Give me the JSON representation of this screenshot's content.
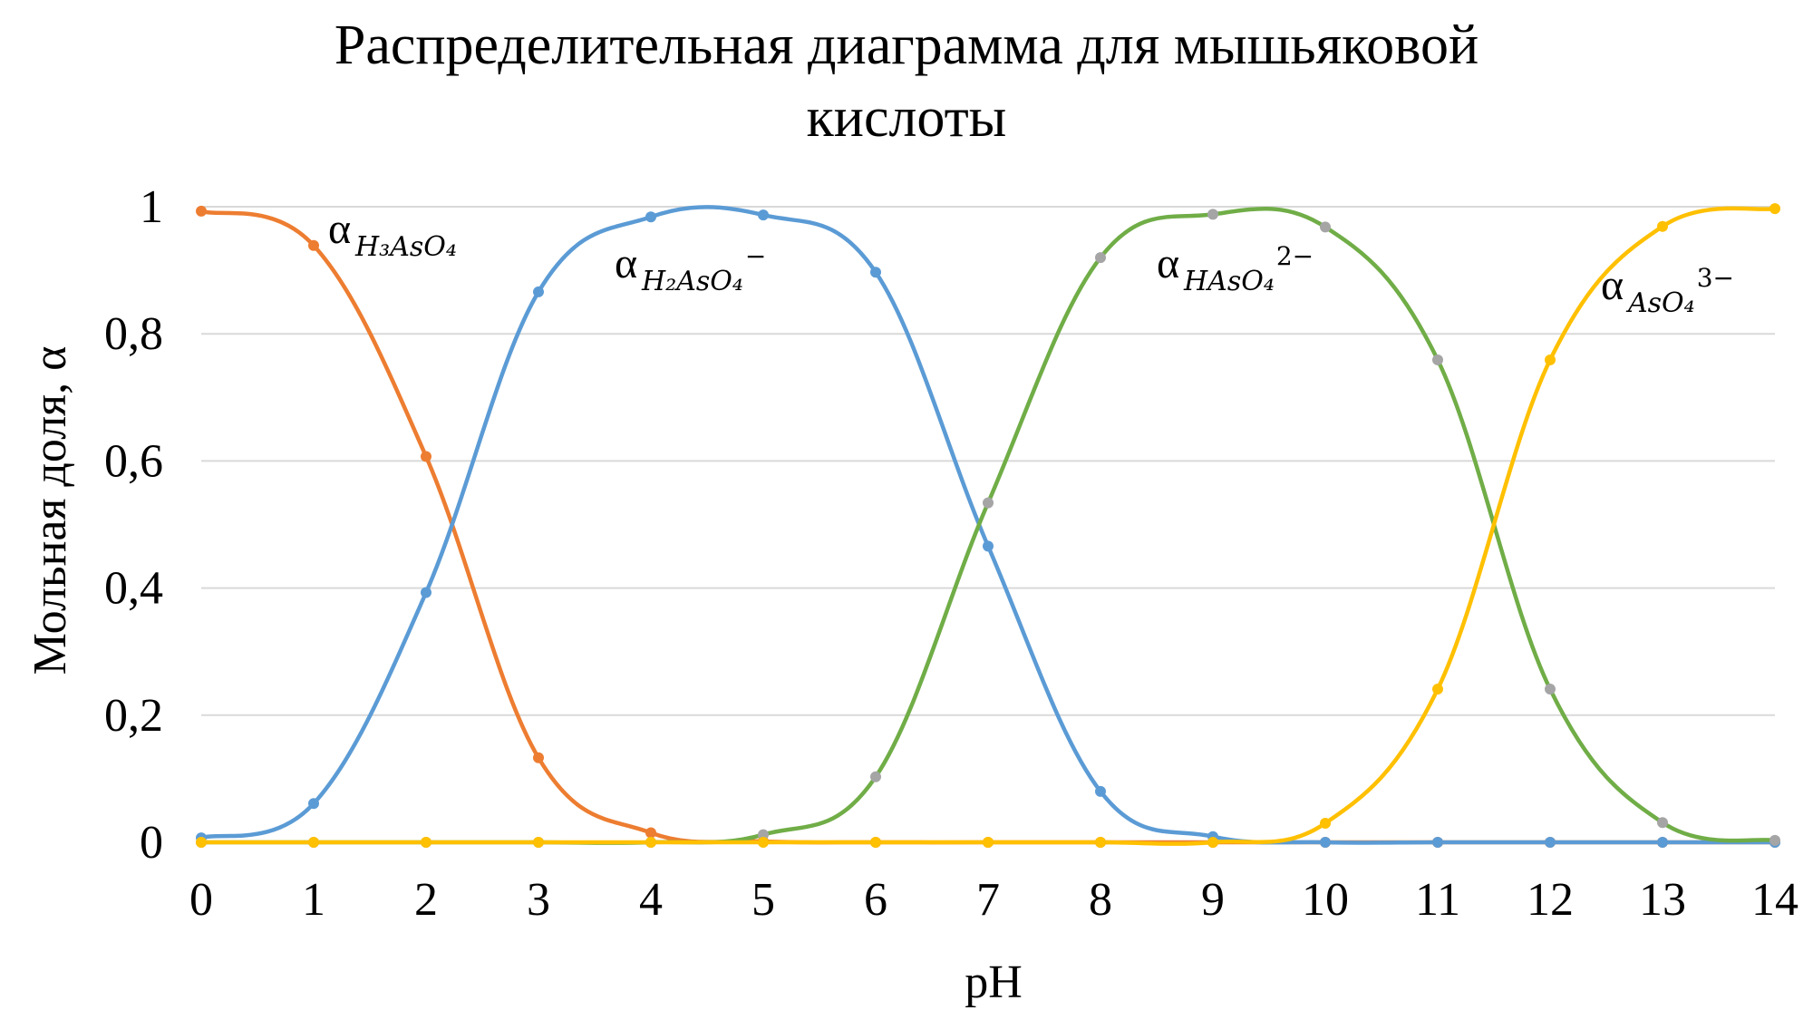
{
  "chart_data": {
    "type": "line",
    "title": [
      "Распределительная диаграмма для мышьяковой",
      "кислоты"
    ],
    "xlabel": "pH",
    "ylabel": "Мольная доля, α",
    "x": [
      0,
      1,
      2,
      3,
      4,
      5,
      6,
      7,
      8,
      9,
      10,
      11,
      12,
      13,
      14
    ],
    "x_tick_labels": [
      "0",
      "1",
      "2",
      "3",
      "4",
      "5",
      "6",
      "7",
      "8",
      "9",
      "10",
      "11",
      "12",
      "13",
      "14"
    ],
    "y_tick_labels": [
      "0",
      "0,2",
      "0,4",
      "0,6",
      "0,8",
      "1"
    ],
    "xlim": [
      0,
      14
    ],
    "ylim": [
      0,
      1
    ],
    "grid": "horizontal",
    "smooth": true,
    "series": [
      {
        "symbol": "α",
        "sub": "H₃AsO₄",
        "sup": "",
        "color": "#ED7D31",
        "marker_color": "#ED7D31",
        "values": [
          0.993,
          0.939,
          0.607,
          0.133,
          0.015,
          0.0015,
          0.0,
          0.0,
          0.0,
          0.0,
          0.0,
          0.0,
          0.0,
          0.0,
          0.0
        ]
      },
      {
        "symbol": "α",
        "sub": "H₂AsO₄",
        "sup": "−",
        "color": "#5B9BD5",
        "marker_color": "#5B9BD5",
        "values": [
          0.007,
          0.061,
          0.393,
          0.866,
          0.984,
          0.987,
          0.897,
          0.466,
          0.08,
          0.009,
          0.0,
          0.0,
          0.0,
          0.0,
          0.0
        ]
      },
      {
        "symbol": "α",
        "sub": "HAsO₄",
        "sup": "2−",
        "color": "#70AD47",
        "marker_color": "#A5A5A5",
        "values": [
          0.0,
          0.0,
          0.0,
          0.0,
          0.0,
          0.012,
          0.103,
          0.534,
          0.92,
          0.988,
          0.968,
          0.759,
          0.241,
          0.031,
          0.003
        ]
      },
      {
        "symbol": "α",
        "sub": "AsO₄",
        "sup": "3−",
        "color": "#FFC000",
        "marker_color": "#FFC000",
        "values": [
          0.0,
          0.0,
          0.0,
          0.0,
          0.0,
          0.0,
          0.0,
          0.0,
          0.0,
          0.0,
          0.03,
          0.241,
          0.759,
          0.969,
          0.997
        ]
      }
    ],
    "annotations": [
      {
        "series": 0,
        "sym": "α",
        "sub": "H₃AsO₄",
        "sup": ""
      },
      {
        "series": 1,
        "sym": "α",
        "sub": "H₂AsO₄",
        "sup": "−"
      },
      {
        "series": 2,
        "sym": "α",
        "sub": "HAsO₄",
        "sup": "2−"
      },
      {
        "series": 3,
        "sym": "α",
        "sub": "AsO₄",
        "sup": "3−"
      }
    ]
  }
}
